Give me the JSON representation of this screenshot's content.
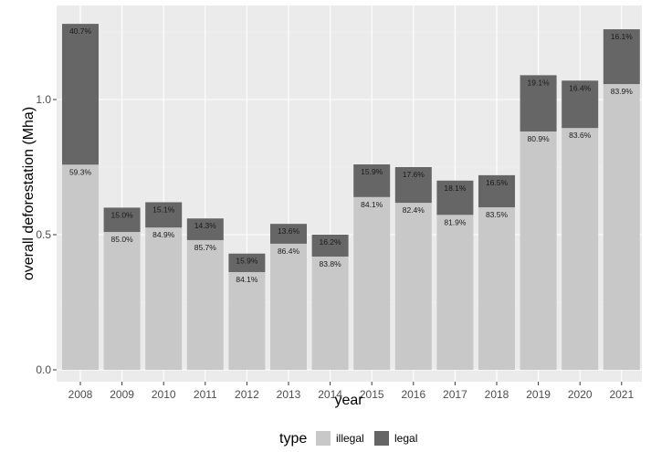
{
  "chart_data": {
    "type": "bar",
    "stacked": true,
    "xlabel": "year",
    "ylabel": "overall deforestation (Mha)",
    "ylim": [
      0,
      1.3
    ],
    "yticks": [
      "0.0",
      "0.5",
      "1.0"
    ],
    "ytick_values": [
      0,
      0.5,
      1.0
    ],
    "categories": [
      "2008",
      "2009",
      "2010",
      "2011",
      "2012",
      "2013",
      "2014",
      "2015",
      "2016",
      "2017",
      "2018",
      "2019",
      "2020",
      "2021"
    ],
    "totals": [
      1.28,
      0.6,
      0.62,
      0.56,
      0.43,
      0.54,
      0.5,
      0.76,
      0.75,
      0.7,
      0.72,
      1.09,
      1.07,
      1.26
    ],
    "series": [
      {
        "name": "illegal",
        "color": "#c8c8c8",
        "share_labels": [
          "59.3%",
          "85.0%",
          "84.9%",
          "85.7%",
          "84.1%",
          "86.4%",
          "83.8%",
          "84.1%",
          "82.4%",
          "81.9%",
          "83.5%",
          "80.9%",
          "83.6%",
          "83.9%"
        ]
      },
      {
        "name": "legal",
        "color": "#666666",
        "share_labels": [
          "40.7%",
          "15.0%",
          "15.1%",
          "14.3%",
          "15.9%",
          "13.6%",
          "16.2%",
          "15.9%",
          "17.6%",
          "18.1%",
          "16.5%",
          "19.1%",
          "16.4%",
          "16.1%"
        ]
      }
    ],
    "legend": {
      "title": "type",
      "position": "bottom"
    },
    "grid": true,
    "background": "#ebebeb",
    "gridline_color": "#ffffff"
  }
}
